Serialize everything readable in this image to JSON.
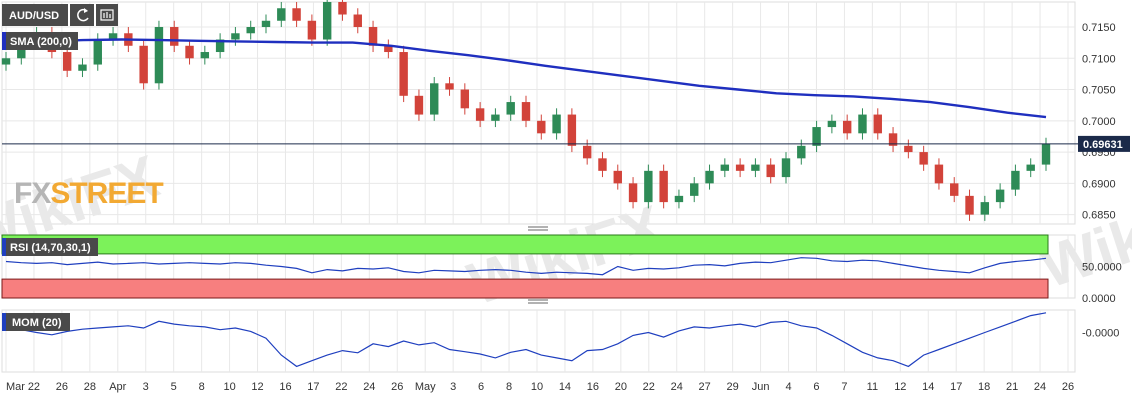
{
  "toolbar": {
    "symbol": "AUD/USD",
    "refresh_icon": "refresh-icon",
    "indicators_icon": "indicators-icon"
  },
  "brand": {
    "fx": "FX",
    "street": "STREET"
  },
  "watermark": "WikiFX",
  "colors": {
    "up_candle": "#2e8b57",
    "down_candle": "#d2433a",
    "sma_line": "#1f2fbf",
    "indicator_line": "#1f3fbf",
    "rsi_overbought": "#7cf25a",
    "rsi_oversold": "#f77f7f",
    "price_label": "#1b2a4a",
    "grid": "#e8e8e8"
  },
  "chart_data": [
    {
      "type": "candlestick",
      "panel": "price",
      "symbol": "AUD/USD",
      "indicator_label": "SMA (200,0)",
      "y_ticks": [
        "0.7150",
        "0.7100",
        "0.7050",
        "0.7000",
        "0.6950",
        "0.6900",
        "0.6850"
      ],
      "ylim": [
        0.6835,
        0.719
      ],
      "current_price": "0.69631",
      "current_price_value": 0.69631,
      "x_date_labels": [
        "Mar",
        "22",
        "26",
        "28",
        "Apr",
        "3",
        "5",
        "8",
        "10",
        "12",
        "16",
        "17",
        "22",
        "24",
        "26",
        "May",
        "3",
        "6",
        "8",
        "10",
        "14",
        "16",
        "20",
        "22",
        "24",
        "27",
        "29",
        "Jun",
        "4",
        "6",
        "7",
        "11",
        "12",
        "14",
        "17",
        "18",
        "21",
        "24",
        "26"
      ],
      "close_series": [
        0.71,
        0.713,
        0.714,
        0.711,
        0.708,
        0.709,
        0.713,
        0.714,
        0.712,
        0.706,
        0.715,
        0.712,
        0.71,
        0.711,
        0.713,
        0.714,
        0.715,
        0.716,
        0.718,
        0.716,
        0.713,
        0.719,
        0.717,
        0.715,
        0.712,
        0.711,
        0.704,
        0.701,
        0.706,
        0.705,
        0.702,
        0.7,
        0.701,
        0.703,
        0.7,
        0.698,
        0.701,
        0.696,
        0.694,
        0.692,
        0.69,
        0.687,
        0.692,
        0.687,
        0.688,
        0.69,
        0.692,
        0.693,
        0.692,
        0.693,
        0.691,
        0.694,
        0.696,
        0.699,
        0.7,
        0.698,
        0.701,
        0.698,
        0.696,
        0.695,
        0.693,
        0.69,
        0.688,
        0.685,
        0.687,
        0.689,
        0.692,
        0.693,
        0.6963
      ],
      "sma_200": {
        "name": "SMA (200,0)",
        "values": [
          0.7125,
          0.7127,
          0.7129,
          0.713,
          0.7129,
          0.7128,
          0.7127,
          0.7126,
          0.7125,
          0.7125,
          0.712,
          0.7112,
          0.7105,
          0.7097,
          0.7088,
          0.708,
          0.7072,
          0.7064,
          0.7056,
          0.705,
          0.7044,
          0.7041,
          0.7039,
          0.7035,
          0.703,
          0.7022,
          0.7013,
          0.7006
        ]
      }
    },
    {
      "type": "line",
      "panel": "rsi",
      "indicator_label": "RSI (14,70,30,1)",
      "y_ticks": [
        "50.0000",
        "0.0000"
      ],
      "levels": [
        70,
        30
      ],
      "ylim": [
        0,
        100
      ],
      "values": [
        58,
        56,
        55,
        56,
        53,
        55,
        57,
        54,
        55,
        56,
        54,
        55,
        56,
        55,
        54,
        56,
        55,
        52,
        50,
        47,
        40,
        45,
        43,
        47,
        46,
        48,
        42,
        40,
        44,
        43,
        42,
        44,
        45,
        44,
        41,
        39,
        41,
        40,
        39,
        37,
        50,
        44,
        47,
        46,
        48,
        52,
        53,
        51,
        55,
        57,
        56,
        60,
        64,
        63,
        59,
        58,
        60,
        59,
        55,
        51,
        47,
        44,
        42,
        40,
        48,
        55,
        58,
        60,
        63
      ]
    },
    {
      "type": "line",
      "panel": "momentum",
      "indicator_label": "MOM (20)",
      "y_ticks": [
        "-0.0000"
      ],
      "ylim": [
        -0.007,
        0.004
      ],
      "values": [
        0.001,
        0.0005,
        0.0,
        -0.0004,
        0.0002,
        0.0006,
        0.0008,
        0.001,
        0.0012,
        0.0008,
        0.002,
        0.0015,
        0.0012,
        0.001,
        0.0005,
        0.0008,
        0.0002,
        -0.001,
        -0.004,
        -0.006,
        -0.005,
        -0.004,
        -0.0032,
        -0.0036,
        -0.002,
        -0.0025,
        -0.0015,
        -0.0022,
        -0.0018,
        -0.003,
        -0.0034,
        -0.0038,
        -0.0045,
        -0.0035,
        -0.003,
        -0.004,
        -0.0045,
        -0.005,
        -0.0032,
        -0.003,
        -0.002,
        -0.0005,
        0.0,
        -0.0008,
        0.0003,
        0.001,
        0.0008,
        0.0012,
        0.0015,
        0.001,
        0.0018,
        0.002,
        0.0012,
        0.0008,
        -0.0005,
        -0.002,
        -0.0035,
        -0.0045,
        -0.005,
        -0.006,
        -0.004,
        -0.003,
        -0.002,
        -0.001,
        0.0,
        0.001,
        0.002,
        0.003,
        0.0035
      ]
    }
  ]
}
